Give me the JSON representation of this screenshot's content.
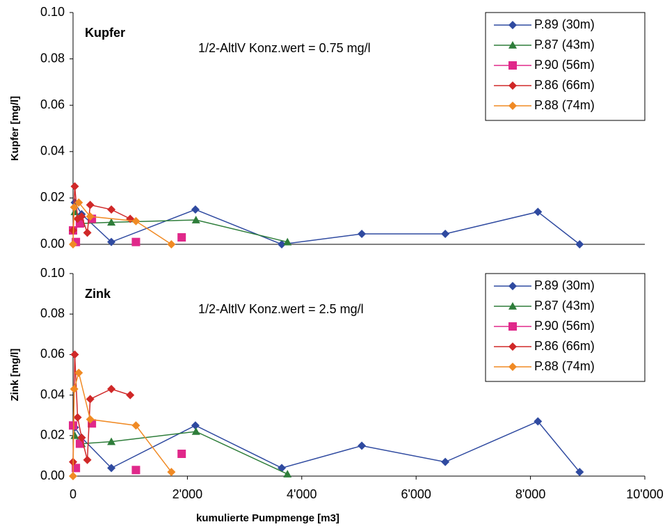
{
  "chart_data": [
    {
      "type": "line",
      "label": "Kupfer",
      "annotation": "1/2-AltlV Konz.wert = 0.75 mg/l",
      "ylabel": "Kupfer [mg/l]",
      "xlim": [
        0,
        10000
      ],
      "ylim": [
        0,
        0.1
      ],
      "yticks": [
        {
          "value": 0,
          "label": "0.00"
        },
        {
          "value": 0.02,
          "label": "0.02"
        },
        {
          "value": 0.04,
          "label": "0.04"
        },
        {
          "value": 0.06,
          "label": "0.06"
        },
        {
          "value": 0.08,
          "label": "0.08"
        },
        {
          "value": 0.1,
          "label": "0.10"
        }
      ],
      "series": [
        {
          "name": "P.89 (30m)",
          "color": "#2f4aa0",
          "marker": "diamond",
          "connected": true,
          "x": [
            30,
            150,
            670,
            2140,
            3650,
            5050,
            6510,
            8130,
            8860
          ],
          "values": [
            0.018,
            0.013,
            0.001,
            0.015,
            0,
            0.0045,
            0.0045,
            0.014,
            0
          ]
        },
        {
          "name": "P.87 (43m)",
          "color": "#2e7d3a",
          "marker": "triangle",
          "connected": true,
          "x": [
            30,
            150,
            670,
            2150,
            3750
          ],
          "values": [
            0.014,
            0.009,
            0.0095,
            0.0105,
            0.001
          ]
        },
        {
          "name": "P.90 (56m)",
          "color": "#e0288a",
          "marker": "square",
          "connected": false,
          "x": [
            0,
            50,
            120,
            330,
            1100,
            1900
          ],
          "values": [
            0.006,
            0.001,
            0.009,
            0.011,
            0.001,
            0.003
          ]
        },
        {
          "name": "P.86 (66m)",
          "color": "#d02828",
          "marker": "diamond",
          "connected": true,
          "x": [
            0,
            30,
            80,
            150,
            250,
            300,
            670,
            1000
          ],
          "values": [
            0.006,
            0.025,
            0.011,
            0.012,
            0.005,
            0.017,
            0.015,
            0.011
          ]
        },
        {
          "name": "P.88 (74m)",
          "color": "#f08a24",
          "marker": "diamond",
          "connected": true,
          "x": [
            0,
            20,
            100,
            300,
            1100,
            1720
          ],
          "values": [
            0,
            0.016,
            0.018,
            0.012,
            0.01,
            0
          ]
        }
      ]
    },
    {
      "type": "line",
      "label": "Zink",
      "annotation": "1/2-AltlV Konz.wert = 2.5 mg/l",
      "ylabel": "Zink [mg/l]",
      "xlabel": "kumulierte Pumpmenge [m3]",
      "xlim": [
        0,
        10000
      ],
      "xticks": [
        0,
        {
          "value": 2000,
          "label": "2'000"
        },
        {
          "value": 4000,
          "label": "4'000"
        },
        {
          "value": 6000,
          "label": "6'000"
        },
        {
          "value": 8000,
          "label": "8'000"
        },
        {
          "value": 10000,
          "label": "10'000"
        }
      ],
      "ylim": [
        0,
        0.1
      ],
      "yticks": [
        {
          "value": 0,
          "label": "0.00"
        },
        {
          "value": 0.02,
          "label": "0.02"
        },
        {
          "value": 0.04,
          "label": "0.04"
        },
        {
          "value": 0.06,
          "label": "0.06"
        },
        {
          "value": 0.08,
          "label": "0.08"
        },
        {
          "value": 0.1,
          "label": "0.10"
        }
      ],
      "series": [
        {
          "name": "P.89 (30m)",
          "color": "#2f4aa0",
          "marker": "diamond",
          "connected": true,
          "x": [
            30,
            150,
            670,
            2140,
            3650,
            5050,
            6510,
            8130,
            8860
          ],
          "values": [
            0.024,
            0.019,
            0.004,
            0.025,
            0.004,
            0.015,
            0.007,
            0.027,
            0.002
          ]
        },
        {
          "name": "P.87 (43m)",
          "color": "#2e7d3a",
          "marker": "triangle",
          "connected": true,
          "x": [
            30,
            150,
            670,
            2150,
            3750
          ],
          "values": [
            0.02,
            0.016,
            0.017,
            0.022,
            0.001
          ]
        },
        {
          "name": "P.90 (56m)",
          "color": "#e0288a",
          "marker": "square",
          "connected": false,
          "x": [
            0,
            50,
            120,
            330,
            1100,
            1900
          ],
          "values": [
            0.025,
            0.004,
            0.016,
            0.026,
            0.003,
            0.011
          ]
        },
        {
          "name": "P.86 (66m)",
          "color": "#d02828",
          "marker": "diamond",
          "connected": true,
          "x": [
            0,
            30,
            80,
            150,
            250,
            300,
            670,
            1000
          ],
          "values": [
            0.007,
            0.06,
            0.029,
            0.019,
            0.008,
            0.038,
            0.043,
            0.04
          ]
        },
        {
          "name": "P.88 (74m)",
          "color": "#f08a24",
          "marker": "diamond",
          "connected": true,
          "x": [
            0,
            20,
            100,
            300,
            1100,
            1720
          ],
          "values": [
            0,
            0.043,
            0.051,
            0.028,
            0.025,
            0.002
          ]
        }
      ]
    }
  ]
}
